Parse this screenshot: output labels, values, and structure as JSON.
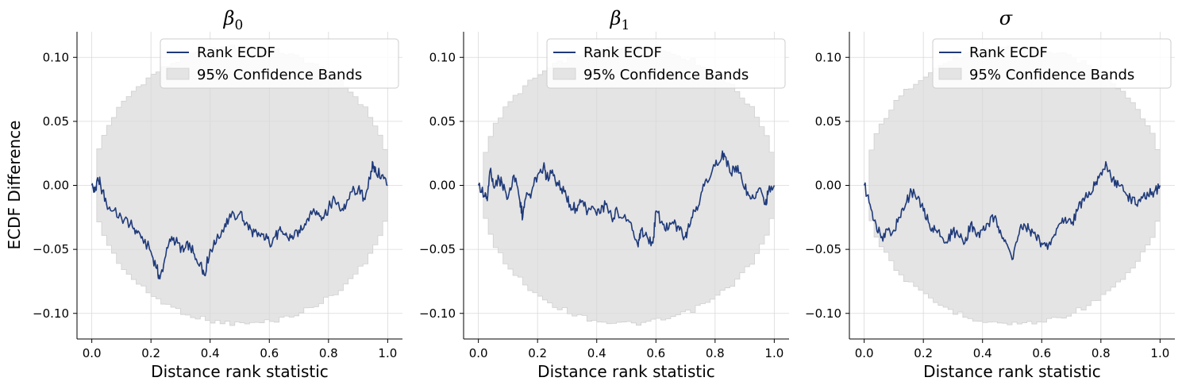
{
  "figure": {
    "ylabel": "ECDF Difference"
  },
  "legend": {
    "line_label": "Rank ECDF",
    "band_label": "95% Confidence Bands",
    "placement": "top-right"
  },
  "colors": {
    "line": "#1f3a7a",
    "band": "#e4e4e4",
    "band_edge": "#d0d0d0",
    "grid": "#d9d9d9"
  },
  "chart_data": [
    {
      "type": "line",
      "title_base": "β",
      "title_sub": "0",
      "xlabel": "Distance rank statistic",
      "xlim": [
        -0.05,
        1.05
      ],
      "ylim": [
        -0.12,
        0.12
      ],
      "xticks": [
        0.0,
        0.2,
        0.4,
        0.6,
        0.8,
        1.0
      ],
      "xtick_labels": [
        "0.0",
        "0.2",
        "0.4",
        "0.6",
        "0.8",
        "1.0"
      ],
      "yticks": [
        -0.1,
        -0.05,
        0.0,
        0.05,
        0.1
      ],
      "ytick_labels": [
        "−0.10",
        "−0.05",
        "0.00",
        "0.05",
        "0.10"
      ],
      "grid": true,
      "band_max": 0.108,
      "series": [
        {
          "x": [
            0.0,
            0.01,
            0.02,
            0.03,
            0.05,
            0.07,
            0.1,
            0.13,
            0.15,
            0.17,
            0.2,
            0.22,
            0.23,
            0.25,
            0.27,
            0.29,
            0.31,
            0.33,
            0.35,
            0.37,
            0.38,
            0.4,
            0.42,
            0.45,
            0.47,
            0.5,
            0.52,
            0.54,
            0.56,
            0.58,
            0.6,
            0.62,
            0.64,
            0.66,
            0.68,
            0.7,
            0.72,
            0.74,
            0.76,
            0.78,
            0.8,
            0.82,
            0.84,
            0.86,
            0.88,
            0.9,
            0.92,
            0.94,
            0.95,
            0.96,
            0.98,
            1.0
          ],
          "y": [
            0.0,
            -0.005,
            0.006,
            0.0,
            -0.015,
            -0.02,
            -0.025,
            -0.03,
            -0.035,
            -0.04,
            -0.052,
            -0.065,
            -0.073,
            -0.055,
            -0.04,
            -0.045,
            -0.052,
            -0.045,
            -0.058,
            -0.06,
            -0.07,
            -0.05,
            -0.045,
            -0.03,
            -0.025,
            -0.022,
            -0.03,
            -0.035,
            -0.04,
            -0.038,
            -0.045,
            -0.04,
            -0.036,
            -0.04,
            -0.042,
            -0.035,
            -0.03,
            -0.02,
            -0.02,
            -0.025,
            -0.018,
            -0.01,
            -0.02,
            -0.015,
            -0.005,
            -0.003,
            -0.01,
            0.005,
            0.018,
            0.01,
            0.008,
            0.0
          ]
        }
      ]
    },
    {
      "type": "line",
      "title_base": "β",
      "title_sub": "1",
      "xlabel": "Distance rank statistic",
      "xlim": [
        -0.05,
        1.05
      ],
      "ylim": [
        -0.12,
        0.12
      ],
      "xticks": [
        0.0,
        0.2,
        0.4,
        0.6,
        0.8,
        1.0
      ],
      "xtick_labels": [
        "0.0",
        "0.2",
        "0.4",
        "0.6",
        "0.8",
        "1.0"
      ],
      "yticks": [
        -0.1,
        -0.05,
        0.0,
        0.05,
        0.1
      ],
      "ytick_labels": [
        "−0.10",
        "−0.05",
        "0.00",
        "0.05",
        "0.10"
      ],
      "grid": true,
      "band_max": 0.108,
      "series": [
        {
          "x": [
            0.0,
            0.02,
            0.03,
            0.04,
            0.05,
            0.07,
            0.08,
            0.1,
            0.12,
            0.14,
            0.15,
            0.16,
            0.18,
            0.2,
            0.22,
            0.23,
            0.25,
            0.27,
            0.29,
            0.31,
            0.33,
            0.35,
            0.37,
            0.39,
            0.41,
            0.43,
            0.45,
            0.47,
            0.5,
            0.52,
            0.54,
            0.55,
            0.57,
            0.59,
            0.6,
            0.62,
            0.64,
            0.66,
            0.68,
            0.7,
            0.71,
            0.73,
            0.75,
            0.77,
            0.8,
            0.82,
            0.83,
            0.85,
            0.87,
            0.89,
            0.91,
            0.93,
            0.95,
            0.97,
            0.98,
            1.0
          ],
          "y": [
            0.0,
            -0.008,
            -0.012,
            0.012,
            0.0,
            0.005,
            0.002,
            -0.01,
            0.008,
            -0.012,
            -0.025,
            -0.01,
            -0.005,
            0.008,
            0.015,
            0.005,
            0.012,
            0.0,
            -0.005,
            -0.015,
            -0.018,
            -0.012,
            -0.02,
            -0.018,
            -0.022,
            -0.015,
            -0.025,
            -0.02,
            -0.028,
            -0.035,
            -0.048,
            -0.035,
            -0.04,
            -0.045,
            -0.02,
            -0.028,
            -0.035,
            -0.03,
            -0.035,
            -0.04,
            -0.03,
            -0.02,
            -0.01,
            0.005,
            0.015,
            0.02,
            0.025,
            0.01,
            0.015,
            0.005,
            -0.005,
            -0.01,
            -0.002,
            -0.015,
            -0.005,
            0.0
          ]
        }
      ]
    },
    {
      "type": "line",
      "title_base": "σ",
      "title_sub": "",
      "xlabel": "Distance rank statistic",
      "xlim": [
        -0.05,
        1.05
      ],
      "ylim": [
        -0.12,
        0.12
      ],
      "xticks": [
        0.0,
        0.2,
        0.4,
        0.6,
        0.8,
        1.0
      ],
      "xtick_labels": [
        "0.0",
        "0.2",
        "0.4",
        "0.6",
        "0.8",
        "1.0"
      ],
      "yticks": [
        -0.1,
        -0.05,
        0.0,
        0.05,
        0.1
      ],
      "ytick_labels": [
        "−0.10",
        "−0.05",
        "0.00",
        "0.05",
        "0.10"
      ],
      "grid": true,
      "band_max": 0.108,
      "series": [
        {
          "x": [
            0.0,
            0.02,
            0.04,
            0.06,
            0.08,
            0.1,
            0.12,
            0.14,
            0.16,
            0.18,
            0.2,
            0.22,
            0.24,
            0.26,
            0.28,
            0.3,
            0.32,
            0.34,
            0.36,
            0.38,
            0.4,
            0.42,
            0.44,
            0.46,
            0.48,
            0.5,
            0.52,
            0.54,
            0.56,
            0.58,
            0.6,
            0.62,
            0.64,
            0.66,
            0.68,
            0.7,
            0.72,
            0.74,
            0.76,
            0.78,
            0.8,
            0.82,
            0.84,
            0.86,
            0.88,
            0.9,
            0.92,
            0.94,
            0.96,
            0.98,
            1.0
          ],
          "y": [
            0.0,
            -0.015,
            -0.03,
            -0.04,
            -0.035,
            -0.035,
            -0.025,
            -0.015,
            -0.005,
            -0.01,
            -0.02,
            -0.03,
            -0.035,
            -0.04,
            -0.045,
            -0.035,
            -0.04,
            -0.045,
            -0.03,
            -0.04,
            -0.035,
            -0.03,
            -0.025,
            -0.035,
            -0.045,
            -0.058,
            -0.04,
            -0.03,
            -0.035,
            -0.04,
            -0.045,
            -0.05,
            -0.04,
            -0.03,
            -0.025,
            -0.03,
            -0.02,
            -0.01,
            -0.005,
            0.0,
            0.01,
            0.015,
            0.005,
            0.0,
            -0.005,
            -0.01,
            -0.015,
            -0.01,
            -0.008,
            -0.005,
            0.0
          ]
        }
      ]
    }
  ]
}
